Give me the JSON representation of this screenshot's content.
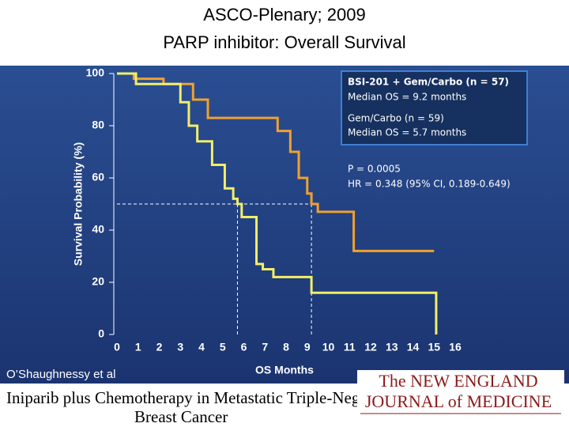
{
  "chart_data": {
    "type": "step",
    "title": "ASCO-Plenary; 2009",
    "subtitle": "PARP inhibitor: Overall Survival",
    "x_label": "OS Months",
    "y_label": "Survival Probability (%)",
    "xlim": [
      0,
      16
    ],
    "ylim": [
      0,
      100
    ],
    "xticks": [
      0,
      1,
      2,
      3,
      4,
      5,
      6,
      7,
      8,
      9,
      10,
      11,
      12,
      13,
      14,
      15,
      16
    ],
    "yticks": [
      0,
      20,
      40,
      60,
      80,
      100
    ],
    "series": [
      {
        "name": "BSI-201 + Gem/Carbo (n = 57)",
        "color": "#f0a030",
        "x": [
          0,
          0.8,
          2.2,
          3.6,
          4.3,
          7.2,
          7.6,
          8.2,
          8.6,
          9.0,
          9.2,
          9.5,
          11.2,
          15
        ],
        "values": [
          100,
          98,
          96,
          90,
          83,
          83,
          78,
          70,
          60,
          54,
          50,
          47,
          32,
          32
        ]
      },
      {
        "name": "Gem/Carbo (n = 59)",
        "color": "#f2ee6a",
        "x": [
          0,
          0.9,
          3.0,
          3.4,
          3.8,
          4.5,
          5.1,
          5.5,
          5.7,
          5.9,
          6.6,
          6.9,
          7.4,
          9.2,
          15.1
        ],
        "values": [
          100,
          96,
          89,
          80,
          74,
          65,
          56,
          52,
          50,
          45,
          27,
          25,
          22,
          16,
          0
        ]
      }
    ],
    "medians": {
      "y": 50,
      "x": [
        9.2,
        5.7
      ]
    },
    "annotations": [
      "Median OS = 9.2 months",
      "Median OS = 5.7 months",
      "P = 0.0005",
      "HR = 0.348 (95% CI, 0.189-0.649)"
    ]
  },
  "footer": {
    "citation": "O’Shaughnessy et al",
    "article_title": [
      "Iniparib plus Chemotherapy in Metastatic Triple-Negative",
      "Breast Cancer"
    ],
    "journal": [
      "The NEW ENGLAND",
      "JOURNAL of MEDICINE"
    ]
  }
}
